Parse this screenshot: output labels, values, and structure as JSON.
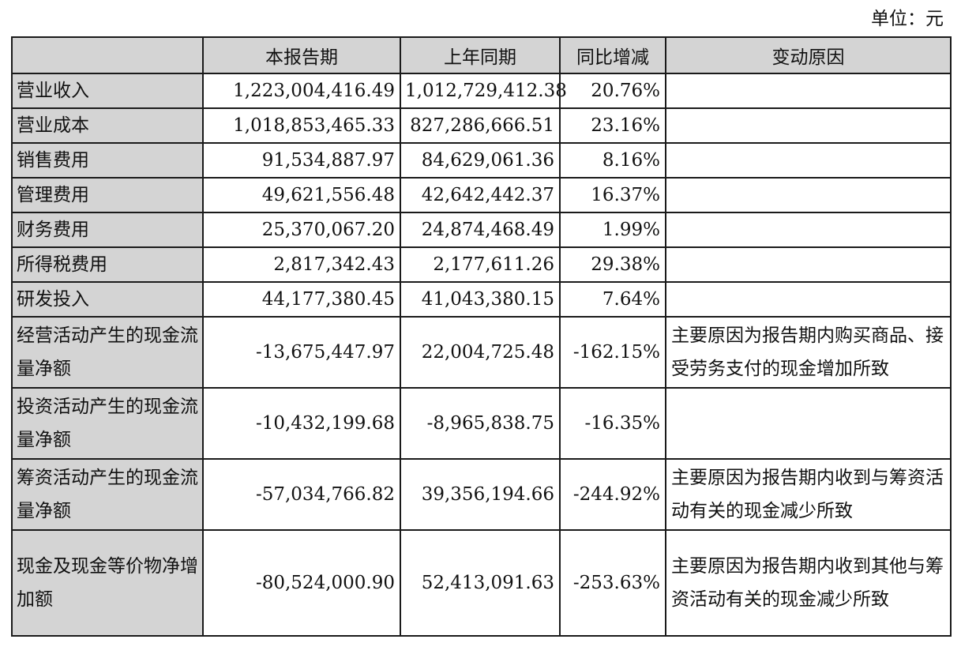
{
  "unit_label": "单位：元",
  "table": {
    "headers": [
      "",
      "本报告期",
      "上年同期",
      "同比增减",
      "变动原因"
    ],
    "rows": [
      {
        "item": "营业收入",
        "current": "1,223,004,416.49",
        "previous": "1,012,729,412.38",
        "change": "20.76%",
        "reason": ""
      },
      {
        "item": "营业成本",
        "current": "1,018,853,465.33",
        "previous": "827,286,666.51",
        "change": "23.16%",
        "reason": ""
      },
      {
        "item": "销售费用",
        "current": "91,534,887.97",
        "previous": "84,629,061.36",
        "change": "8.16%",
        "reason": ""
      },
      {
        "item": "管理费用",
        "current": "49,621,556.48",
        "previous": "42,642,442.37",
        "change": "16.37%",
        "reason": ""
      },
      {
        "item": "财务费用",
        "current": "25,370,067.20",
        "previous": "24,874,468.49",
        "change": "1.99%",
        "reason": ""
      },
      {
        "item": "所得税费用",
        "current": "2,817,342.43",
        "previous": "2,177,611.26",
        "change": "29.38%",
        "reason": ""
      },
      {
        "item": "研发投入",
        "current": "44,177,380.45",
        "previous": "41,043,380.15",
        "change": "7.64%",
        "reason": ""
      },
      {
        "item": "经营活动产生的现金流量净额",
        "current": "-13,675,447.97",
        "previous": "22,004,725.48",
        "change": "-162.15%",
        "reason": "主要原因为报告期内购买商品、接受劳务支付的现金增加所致"
      },
      {
        "item": "投资活动产生的现金流量净额",
        "current": "-10,432,199.68",
        "previous": "-8,965,838.75",
        "change": "-16.35%",
        "reason": ""
      },
      {
        "item": "筹资活动产生的现金流量净额",
        "current": "-57,034,766.82",
        "previous": "39,356,194.66",
        "change": "-244.92%",
        "reason": "主要原因为报告期内收到与筹资活动有关的现金减少所致"
      },
      {
        "item": "现金及现金等价物净增加额",
        "current": "-80,524,000.90",
        "previous": "52,413,091.63",
        "change": "-253.63%",
        "reason": "主要原因为报告期内收到其他与筹资活动有关的现金减少所致"
      }
    ]
  }
}
